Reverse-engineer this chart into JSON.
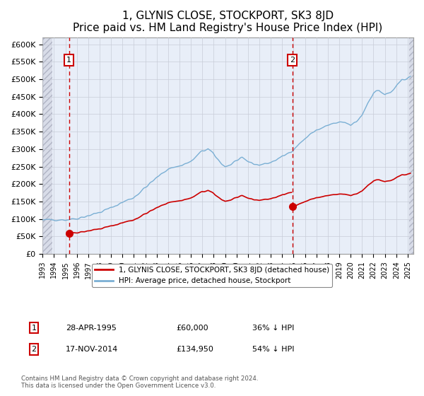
{
  "title": "1, GLYNIS CLOSE, STOCKPORT, SK3 8JD",
  "subtitle": "Price paid vs. HM Land Registry's House Price Index (HPI)",
  "ylabel_ticks": [
    "£0",
    "£50K",
    "£100K",
    "£150K",
    "£200K",
    "£250K",
    "£300K",
    "£350K",
    "£400K",
    "£450K",
    "£500K",
    "£550K",
    "£600K"
  ],
  "ylim": [
    0,
    620000
  ],
  "xlim_start": 1993.0,
  "xlim_end": 2025.5,
  "purchase1_date": 1995.32,
  "purchase1_price": 60000,
  "purchase1_label": "1",
  "purchase2_date": 2014.88,
  "purchase2_price": 134950,
  "purchase2_label": "2",
  "hpi_line_color": "#7aafd4",
  "price_line_color": "#cc0000",
  "vline_color": "#cc0000",
  "background_color": "#e8eef8",
  "hatch_color": "#c8ccd8",
  "grid_color": "#c8ccd8",
  "legend_line1": "1, GLYNIS CLOSE, STOCKPORT, SK3 8JD (detached house)",
  "legend_line2": "HPI: Average price, detached house, Stockport",
  "table_row1": [
    "1",
    "28-APR-1995",
    "£60,000",
    "36% ↓ HPI"
  ],
  "table_row2": [
    "2",
    "17-NOV-2014",
    "£134,950",
    "54% ↓ HPI"
  ],
  "footer": "Contains HM Land Registry data © Crown copyright and database right 2024.\nThis data is licensed under the Open Government Licence v3.0.",
  "title_fontsize": 11,
  "subtitle_fontsize": 9.5
}
